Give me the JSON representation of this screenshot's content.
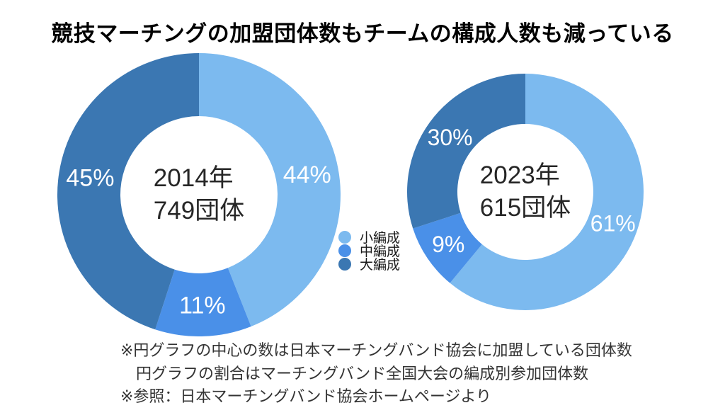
{
  "title": "競技マーチングの加盟団体数もチームの構成人数も減っている",
  "colors": {
    "small_formation": "#7CBAEF",
    "medium_formation": "#4A90E8",
    "large_formation": "#3B77B2",
    "percent_label": "#FFFFFF",
    "center_text": "#262626",
    "background": "#FFFFFF"
  },
  "chart_data": [
    {
      "type": "pie",
      "subtype": "donut",
      "direction": "clockwise",
      "start_angle_deg": 0,
      "center_label": [
        "2014年",
        "749団体"
      ],
      "year": "2014年",
      "total_groups": "749団体",
      "categories": [
        "小編成",
        "中編成",
        "大編成"
      ],
      "values": [
        44,
        11,
        45
      ],
      "slices": [
        {
          "id": "small-formation",
          "label": "小編成",
          "value": 44,
          "display": "44%",
          "color": "#7CBAEF"
        },
        {
          "id": "medium-formation",
          "label": "中編成",
          "value": 11,
          "display": "11%",
          "color": "#4A90E8"
        },
        {
          "id": "large-formation",
          "label": "大編成",
          "value": 45,
          "display": "45%",
          "color": "#3B77B2"
        }
      ]
    },
    {
      "type": "pie",
      "subtype": "donut",
      "direction": "clockwise",
      "start_angle_deg": 0,
      "center_label": [
        "2023年",
        "615団体"
      ],
      "year": "2023年",
      "total_groups": "615団体",
      "categories": [
        "小編成",
        "中編成",
        "大編成"
      ],
      "values": [
        61,
        9,
        30
      ],
      "slices": [
        {
          "id": "small-formation",
          "label": "小編成",
          "value": 61,
          "display": "61%",
          "color": "#7CBAEF"
        },
        {
          "id": "medium-formation",
          "label": "中編成",
          "value": 9,
          "display": "9%",
          "color": "#4A90E8"
        },
        {
          "id": "large-formation",
          "label": "大編成",
          "value": 30,
          "display": "30%",
          "color": "#3B77B2"
        }
      ]
    }
  ],
  "legend": {
    "items": [
      {
        "id": "small-formation",
        "label": "小編成",
        "color": "#7CBAEF"
      },
      {
        "id": "medium-formation",
        "label": "中編成",
        "color": "#4A90E8"
      },
      {
        "id": "large-formation",
        "label": "大編成",
        "color": "#3B77B2"
      }
    ]
  },
  "footnotes": [
    "※円グラフの中心の数は日本マーチングバンド協会に加盟している団体数",
    "円グラフの割合はマーチングバンド全国大会の編成別参加団体数",
    "※参照：日本マーチングバンド協会ホームページより"
  ]
}
